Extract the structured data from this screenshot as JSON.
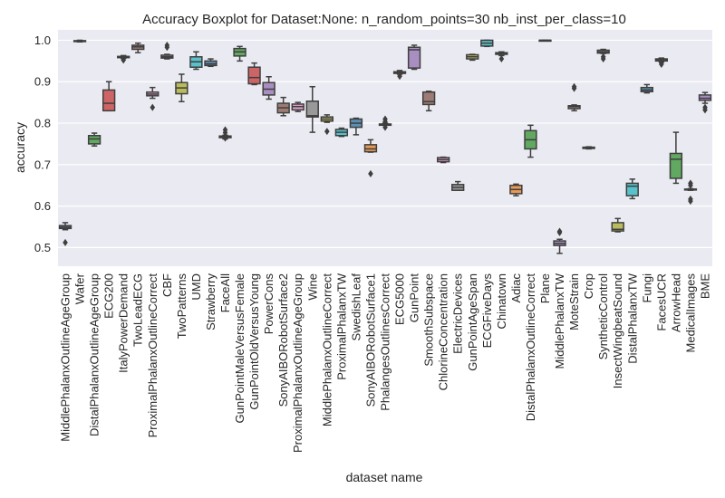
{
  "chart_data": {
    "type": "boxplot",
    "title": "Accuracy Boxplot for Dataset:None: n_random_points=30 nb_inst_per_class=10",
    "xlabel": "dataset name",
    "ylabel": "accuracy",
    "ylim": [
      0.455,
      1.025
    ],
    "yticks": [
      "0.5",
      "0.6",
      "0.7",
      "0.8",
      "0.9",
      "1.0"
    ],
    "grid": true,
    "categories": [
      "MiddlePhalanxOutlineAgeGroup",
      "Wafer",
      "DistalPhalanxOutlineAgeGroup",
      "ECG200",
      "ItalyPowerDemand",
      "TwoLeadECG",
      "ProximalPhalanxOutlineCorrect",
      "CBF",
      "TwoPatterns",
      "UMD",
      "Strawberry",
      "FaceAll",
      "GunPointMaleVersusFemale",
      "GunPointOldVersusYoung",
      "PowerCons",
      "SonyAIBORobotSurface2",
      "ProximalPhalanxOutlineAgeGroup",
      "Wine",
      "MiddlePhalanxOutlineCorrect",
      "ProximalPhalanxTW",
      "SwedishLeaf",
      "SonyAIBORobotSurface1",
      "PhalangesOutlinesCorrect",
      "ECG5000",
      "GunPoint",
      "SmoothSubspace",
      "ChlorineConcentration",
      "ElectricDevices",
      "GunPointAgeSpan",
      "ECGFiveDays",
      "Chinatown",
      "Adiac",
      "DistalPhalanxOutlineCorrect",
      "Plane",
      "MiddlePhalanxTW",
      "MoteStrain",
      "Crop",
      "SyntheticControl",
      "InsectWingbeatSound",
      "DistalPhalanxTW",
      "Fungi",
      "FacesUCR",
      "ArrowHead",
      "MedicalImages",
      "BME"
    ],
    "boxes": [
      {
        "min": 0.543,
        "q1": 0.546,
        "median": 0.549,
        "q3": 0.553,
        "max": 0.56,
        "outliers": [
          0.512
        ]
      },
      {
        "min": 0.996,
        "q1": 0.997,
        "median": 0.998,
        "q3": 0.999,
        "max": 1.0,
        "outliers": []
      },
      {
        "min": 0.745,
        "q1": 0.75,
        "median": 0.762,
        "q3": 0.77,
        "max": 0.776,
        "outliers": []
      },
      {
        "min": 0.83,
        "q1": 0.83,
        "median": 0.848,
        "q3": 0.88,
        "max": 0.9,
        "outliers": []
      },
      {
        "min": 0.956,
        "q1": 0.958,
        "median": 0.959,
        "q3": 0.961,
        "max": 0.963,
        "outliers": [
          0.952
        ]
      },
      {
        "min": 0.97,
        "q1": 0.978,
        "median": 0.984,
        "q3": 0.988,
        "max": 0.993,
        "outliers": []
      },
      {
        "min": 0.86,
        "q1": 0.866,
        "median": 0.87,
        "q3": 0.875,
        "max": 0.886,
        "outliers": [
          0.838
        ]
      },
      {
        "min": 0.955,
        "q1": 0.957,
        "median": 0.96,
        "q3": 0.964,
        "max": 0.966,
        "outliers": [
          0.988,
          0.983
        ]
      },
      {
        "min": 0.852,
        "q1": 0.871,
        "median": 0.885,
        "q3": 0.898,
        "max": 0.918,
        "outliers": []
      },
      {
        "min": 0.93,
        "q1": 0.935,
        "median": 0.948,
        "q3": 0.96,
        "max": 0.972,
        "outliers": []
      },
      {
        "min": 0.937,
        "q1": 0.939,
        "median": 0.943,
        "q3": 0.95,
        "max": 0.955,
        "outliers": []
      },
      {
        "min": 0.762,
        "q1": 0.765,
        "median": 0.767,
        "q3": 0.769,
        "max": 0.771,
        "outliers": [
          0.784,
          0.777,
          0.764
        ]
      },
      {
        "min": 0.95,
        "q1": 0.962,
        "median": 0.972,
        "q3": 0.98,
        "max": 0.985,
        "outliers": []
      },
      {
        "min": 0.893,
        "q1": 0.895,
        "median": 0.91,
        "q3": 0.935,
        "max": 0.945,
        "outliers": []
      },
      {
        "min": 0.858,
        "q1": 0.868,
        "median": 0.882,
        "q3": 0.898,
        "max": 0.912,
        "outliers": []
      },
      {
        "min": 0.818,
        "q1": 0.825,
        "median": 0.837,
        "q3": 0.848,
        "max": 0.862,
        "outliers": []
      },
      {
        "min": 0.828,
        "q1": 0.832,
        "median": 0.84,
        "q3": 0.846,
        "max": 0.85,
        "outliers": []
      },
      {
        "min": 0.778,
        "q1": 0.815,
        "median": 0.818,
        "q3": 0.853,
        "max": 0.888,
        "outliers": []
      },
      {
        "min": 0.802,
        "q1": 0.805,
        "median": 0.81,
        "q3": 0.815,
        "max": 0.82,
        "outliers": [
          0.78
        ]
      },
      {
        "min": 0.768,
        "q1": 0.77,
        "median": 0.778,
        "q3": 0.785,
        "max": 0.788,
        "outliers": []
      },
      {
        "min": 0.772,
        "q1": 0.79,
        "median": 0.8,
        "q3": 0.81,
        "max": 0.812,
        "outliers": []
      },
      {
        "min": 0.73,
        "q1": 0.731,
        "median": 0.738,
        "q3": 0.748,
        "max": 0.76,
        "outliers": [
          0.678
        ]
      },
      {
        "min": 0.795,
        "q1": 0.795,
        "median": 0.797,
        "q3": 0.798,
        "max": 0.8,
        "outliers": [
          0.81,
          0.804,
          0.79
        ]
      },
      {
        "min": 0.918,
        "q1": 0.92,
        "median": 0.922,
        "q3": 0.924,
        "max": 0.927,
        "outliers": [
          0.913
        ]
      },
      {
        "min": 0.93,
        "q1": 0.933,
        "median": 0.977,
        "q3": 0.983,
        "max": 0.988,
        "outliers": []
      },
      {
        "min": 0.83,
        "q1": 0.845,
        "median": 0.852,
        "q3": 0.875,
        "max": 0.877,
        "outliers": []
      },
      {
        "min": 0.705,
        "q1": 0.707,
        "median": 0.712,
        "q3": 0.717,
        "max": 0.718,
        "outliers": []
      },
      {
        "min": 0.638,
        "q1": 0.638,
        "median": 0.645,
        "q3": 0.652,
        "max": 0.659,
        "outliers": []
      },
      {
        "min": 0.952,
        "q1": 0.955,
        "median": 0.96,
        "q3": 0.965,
        "max": 0.966,
        "outliers": []
      },
      {
        "min": 0.985,
        "q1": 0.986,
        "median": 0.993,
        "q3": 1.0,
        "max": 1.0,
        "outliers": []
      },
      {
        "min": 0.963,
        "q1": 0.966,
        "median": 0.968,
        "q3": 0.97,
        "max": 0.972,
        "outliers": [
          0.955
        ]
      },
      {
        "min": 0.625,
        "q1": 0.63,
        "median": 0.64,
        "q3": 0.65,
        "max": 0.653,
        "outliers": []
      },
      {
        "min": 0.718,
        "q1": 0.738,
        "median": 0.76,
        "q3": 0.782,
        "max": 0.795,
        "outliers": []
      },
      {
        "min": 0.999,
        "q1": 0.999,
        "median": 1.0,
        "q3": 1.0,
        "max": 1.0,
        "outliers": []
      },
      {
        "min": 0.486,
        "q1": 0.505,
        "median": 0.51,
        "q3": 0.516,
        "max": 0.52,
        "outliers": [
          0.539,
          0.536
        ]
      },
      {
        "min": 0.83,
        "q1": 0.835,
        "median": 0.84,
        "q3": 0.842,
        "max": 0.844,
        "outliers": [
          0.888,
          0.884
        ]
      },
      {
        "min": 0.738,
        "q1": 0.739,
        "median": 0.74,
        "q3": 0.742,
        "max": 0.743,
        "outliers": []
      },
      {
        "min": 0.968,
        "q1": 0.969,
        "median": 0.972,
        "q3": 0.976,
        "max": 0.978,
        "outliers": [
          0.96,
          0.955
        ]
      },
      {
        "min": 0.538,
        "q1": 0.54,
        "median": 0.544,
        "q3": 0.56,
        "max": 0.57,
        "outliers": []
      },
      {
        "min": 0.618,
        "q1": 0.625,
        "median": 0.648,
        "q3": 0.655,
        "max": 0.665,
        "outliers": []
      },
      {
        "min": 0.873,
        "q1": 0.876,
        "median": 0.88,
        "q3": 0.886,
        "max": 0.893,
        "outliers": []
      },
      {
        "min": 0.948,
        "q1": 0.95,
        "median": 0.953,
        "q3": 0.955,
        "max": 0.957,
        "outliers": [
          0.945,
          0.942
        ]
      },
      {
        "min": 0.655,
        "q1": 0.667,
        "median": 0.713,
        "q3": 0.727,
        "max": 0.778,
        "outliers": []
      },
      {
        "min": 0.638,
        "q1": 0.639,
        "median": 0.64,
        "q3": 0.641,
        "max": 0.642,
        "outliers": [
          0.655,
          0.65,
          0.617,
          0.612
        ]
      },
      {
        "min": 0.848,
        "q1": 0.855,
        "median": 0.86,
        "q3": 0.868,
        "max": 0.874,
        "outliers": [
          0.838,
          0.832
        ]
      }
    ],
    "colors": [
      "#3274a1",
      "#e1812c",
      "#3a923a",
      "#c03d3e",
      "#9372b2",
      "#845b53",
      "#d684bd",
      "#7f7f7f",
      "#a9aa35",
      "#2eb1bd"
    ]
  }
}
